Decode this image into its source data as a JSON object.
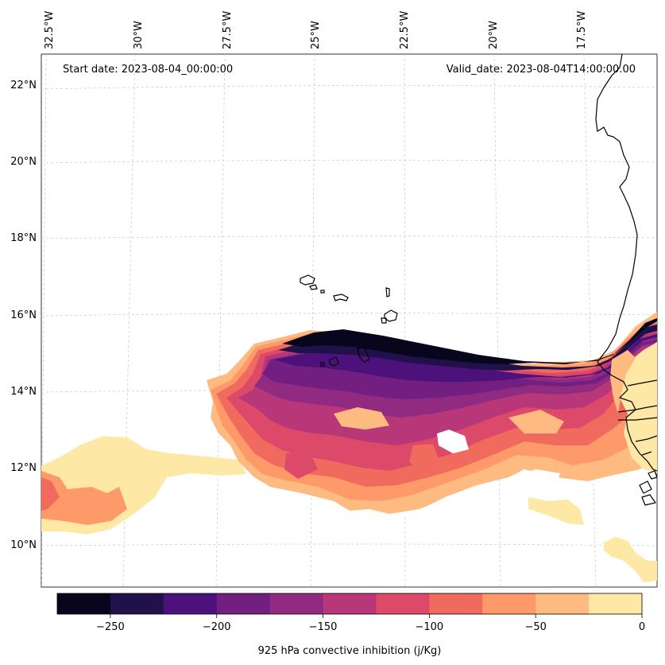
{
  "map": {
    "start_date_label": "Start date: 2023-08-04_00:00:00",
    "valid_date_label": "Valid_date: 2023-08-04T14:00:00.00",
    "lon_labels": [
      "32.5°W",
      "30°W",
      "27.5°W",
      "25°W",
      "22.5°W",
      "20°W",
      "17.5°W"
    ],
    "lat_labels": [
      "22°N",
      "20°N",
      "18°N",
      "16°N",
      "14°N",
      "12°N",
      "10°N"
    ],
    "colorbar": {
      "title": "925 hPa convective inhibition (j/Kg)",
      "tick_labels": [
        "−250",
        "−200",
        "−150",
        "−100",
        "−50",
        "0"
      ],
      "levels": [
        -275,
        -250,
        -225,
        -200,
        -175,
        -150,
        -125,
        -100,
        -75,
        -50,
        -25,
        0
      ],
      "colors": [
        "#07061c",
        "#21114a",
        "#4d117b",
        "#721f81",
        "#912b81",
        "#b73779",
        "#dd4a69",
        "#f06b5e",
        "#fe9a6a",
        "#febb81",
        "#fde9a5"
      ]
    }
  }
}
